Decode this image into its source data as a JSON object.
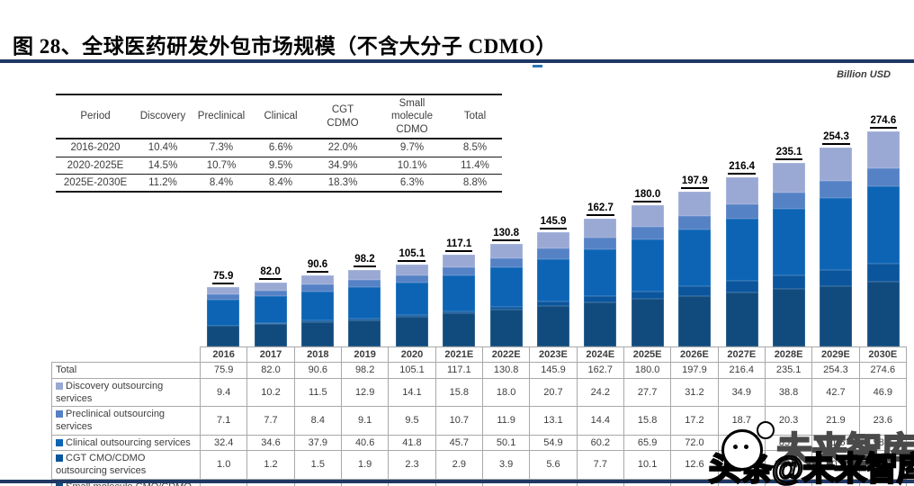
{
  "header": {
    "title": "图 28、全球医药研发外包市场规模（不含大分子 CDMO）",
    "unit_label": "Billion USD"
  },
  "colors": {
    "rule_navy": "#1F3864",
    "discovery": "#9AA9D4",
    "preclinical": "#5581C5",
    "clinical": "#0D64B5",
    "cgt": "#0B559C",
    "small_molecule": "#114B7E"
  },
  "cagr_table": {
    "headers": [
      "Period",
      "Discovery",
      "Preclinical",
      "Clinical",
      "CGT\nCDMO",
      "Small\nmolecule\nCDMO",
      "Total"
    ],
    "rows": [
      [
        "2016-2020",
        "10.4%",
        "7.3%",
        "6.6%",
        "22.0%",
        "9.7%",
        "8.5%"
      ],
      [
        "2020-2025E",
        "14.5%",
        "10.7%",
        "9.5%",
        "34.9%",
        "10.1%",
        "11.4%"
      ],
      [
        "2025E-2030E",
        "11.2%",
        "8.4%",
        "8.4%",
        "18.3%",
        "6.3%",
        "8.8%"
      ]
    ]
  },
  "chart_data": {
    "type": "bar",
    "stacked": true,
    "title": "全球医药研发外包市场规模（不含大分子 CDMO）",
    "ylabel": "Billion USD",
    "ylim": [
      0,
      280
    ],
    "grid": false,
    "legend_position": "table-below",
    "stack_order_bottom_to_top": [
      "Small molecule CMO/CDMO outsourcing services",
      "CGT CMO/CDMO outsourcing services",
      "Clinical outsourcing services",
      "Preclinical outsourcing services",
      "Discovery outsourcing services"
    ],
    "categories": [
      "2016",
      "2017",
      "2018",
      "2019",
      "2020",
      "2021E",
      "2022E",
      "2023E",
      "2024E",
      "2025E",
      "2026E",
      "2027E",
      "2028E",
      "2029E",
      "2030E"
    ],
    "totals": [
      "75.9",
      "82.0",
      "90.6",
      "98.2",
      "105.1",
      "117.1",
      "130.8",
      "145.9",
      "162.7",
      "180.0",
      "197.9",
      "216.4",
      "235.1",
      "254.3",
      "274.6"
    ],
    "total_row_label": "Total",
    "series": [
      {
        "name": "Discovery outsourcing services",
        "color": "#9AA9D4",
        "values": [
          "9.4",
          "10.2",
          "11.5",
          "12.9",
          "14.1",
          "15.8",
          "18.0",
          "20.7",
          "24.2",
          "27.7",
          "31.2",
          "34.9",
          "38.8",
          "42.7",
          "46.9"
        ]
      },
      {
        "name": "Preclinical outsourcing services",
        "color": "#5581C5",
        "values": [
          "7.1",
          "7.7",
          "8.4",
          "9.1",
          "9.5",
          "10.7",
          "11.9",
          "13.1",
          "14.4",
          "15.8",
          "17.2",
          "18.7",
          "20.3",
          "21.9",
          "23.6"
        ]
      },
      {
        "name": "Clinical outsourcing services",
        "color": "#0D64B5",
        "values": [
          "32.4",
          "34.6",
          "37.9",
          "40.6",
          "41.8",
          "45.7",
          "50.1",
          "54.9",
          "60.2",
          "65.9",
          "72.0",
          "78.5",
          "85.0",
          "91.6",
          "98.4"
        ]
      },
      {
        "name": "CGT CMO/CDMO outsourcing services",
        "color": "#0B559C",
        "values": [
          "1.0",
          "1.2",
          "1.5",
          "1.9",
          "2.3",
          "2.9",
          "3.9",
          "5.6",
          "7.7",
          "10.1",
          "12.6",
          "15.2",
          "17.8",
          "20.5",
          "23.4"
        ]
      },
      {
        "name": "Small molecule CMO/CDMO outsourcing services",
        "color": "#114B7E",
        "values": [
          "25.9",
          "28.2",
          "31.3",
          "33.8",
          "37.5",
          "42.0",
          "46.9",
          "51.6",
          "56.3",
          "60.6",
          "64.8",
          "69.1",
          "73.2",
          "77.6",
          "82.3"
        ]
      }
    ]
  },
  "watermark": {
    "main": "头条@未来智库",
    "echo": "未来智库"
  }
}
